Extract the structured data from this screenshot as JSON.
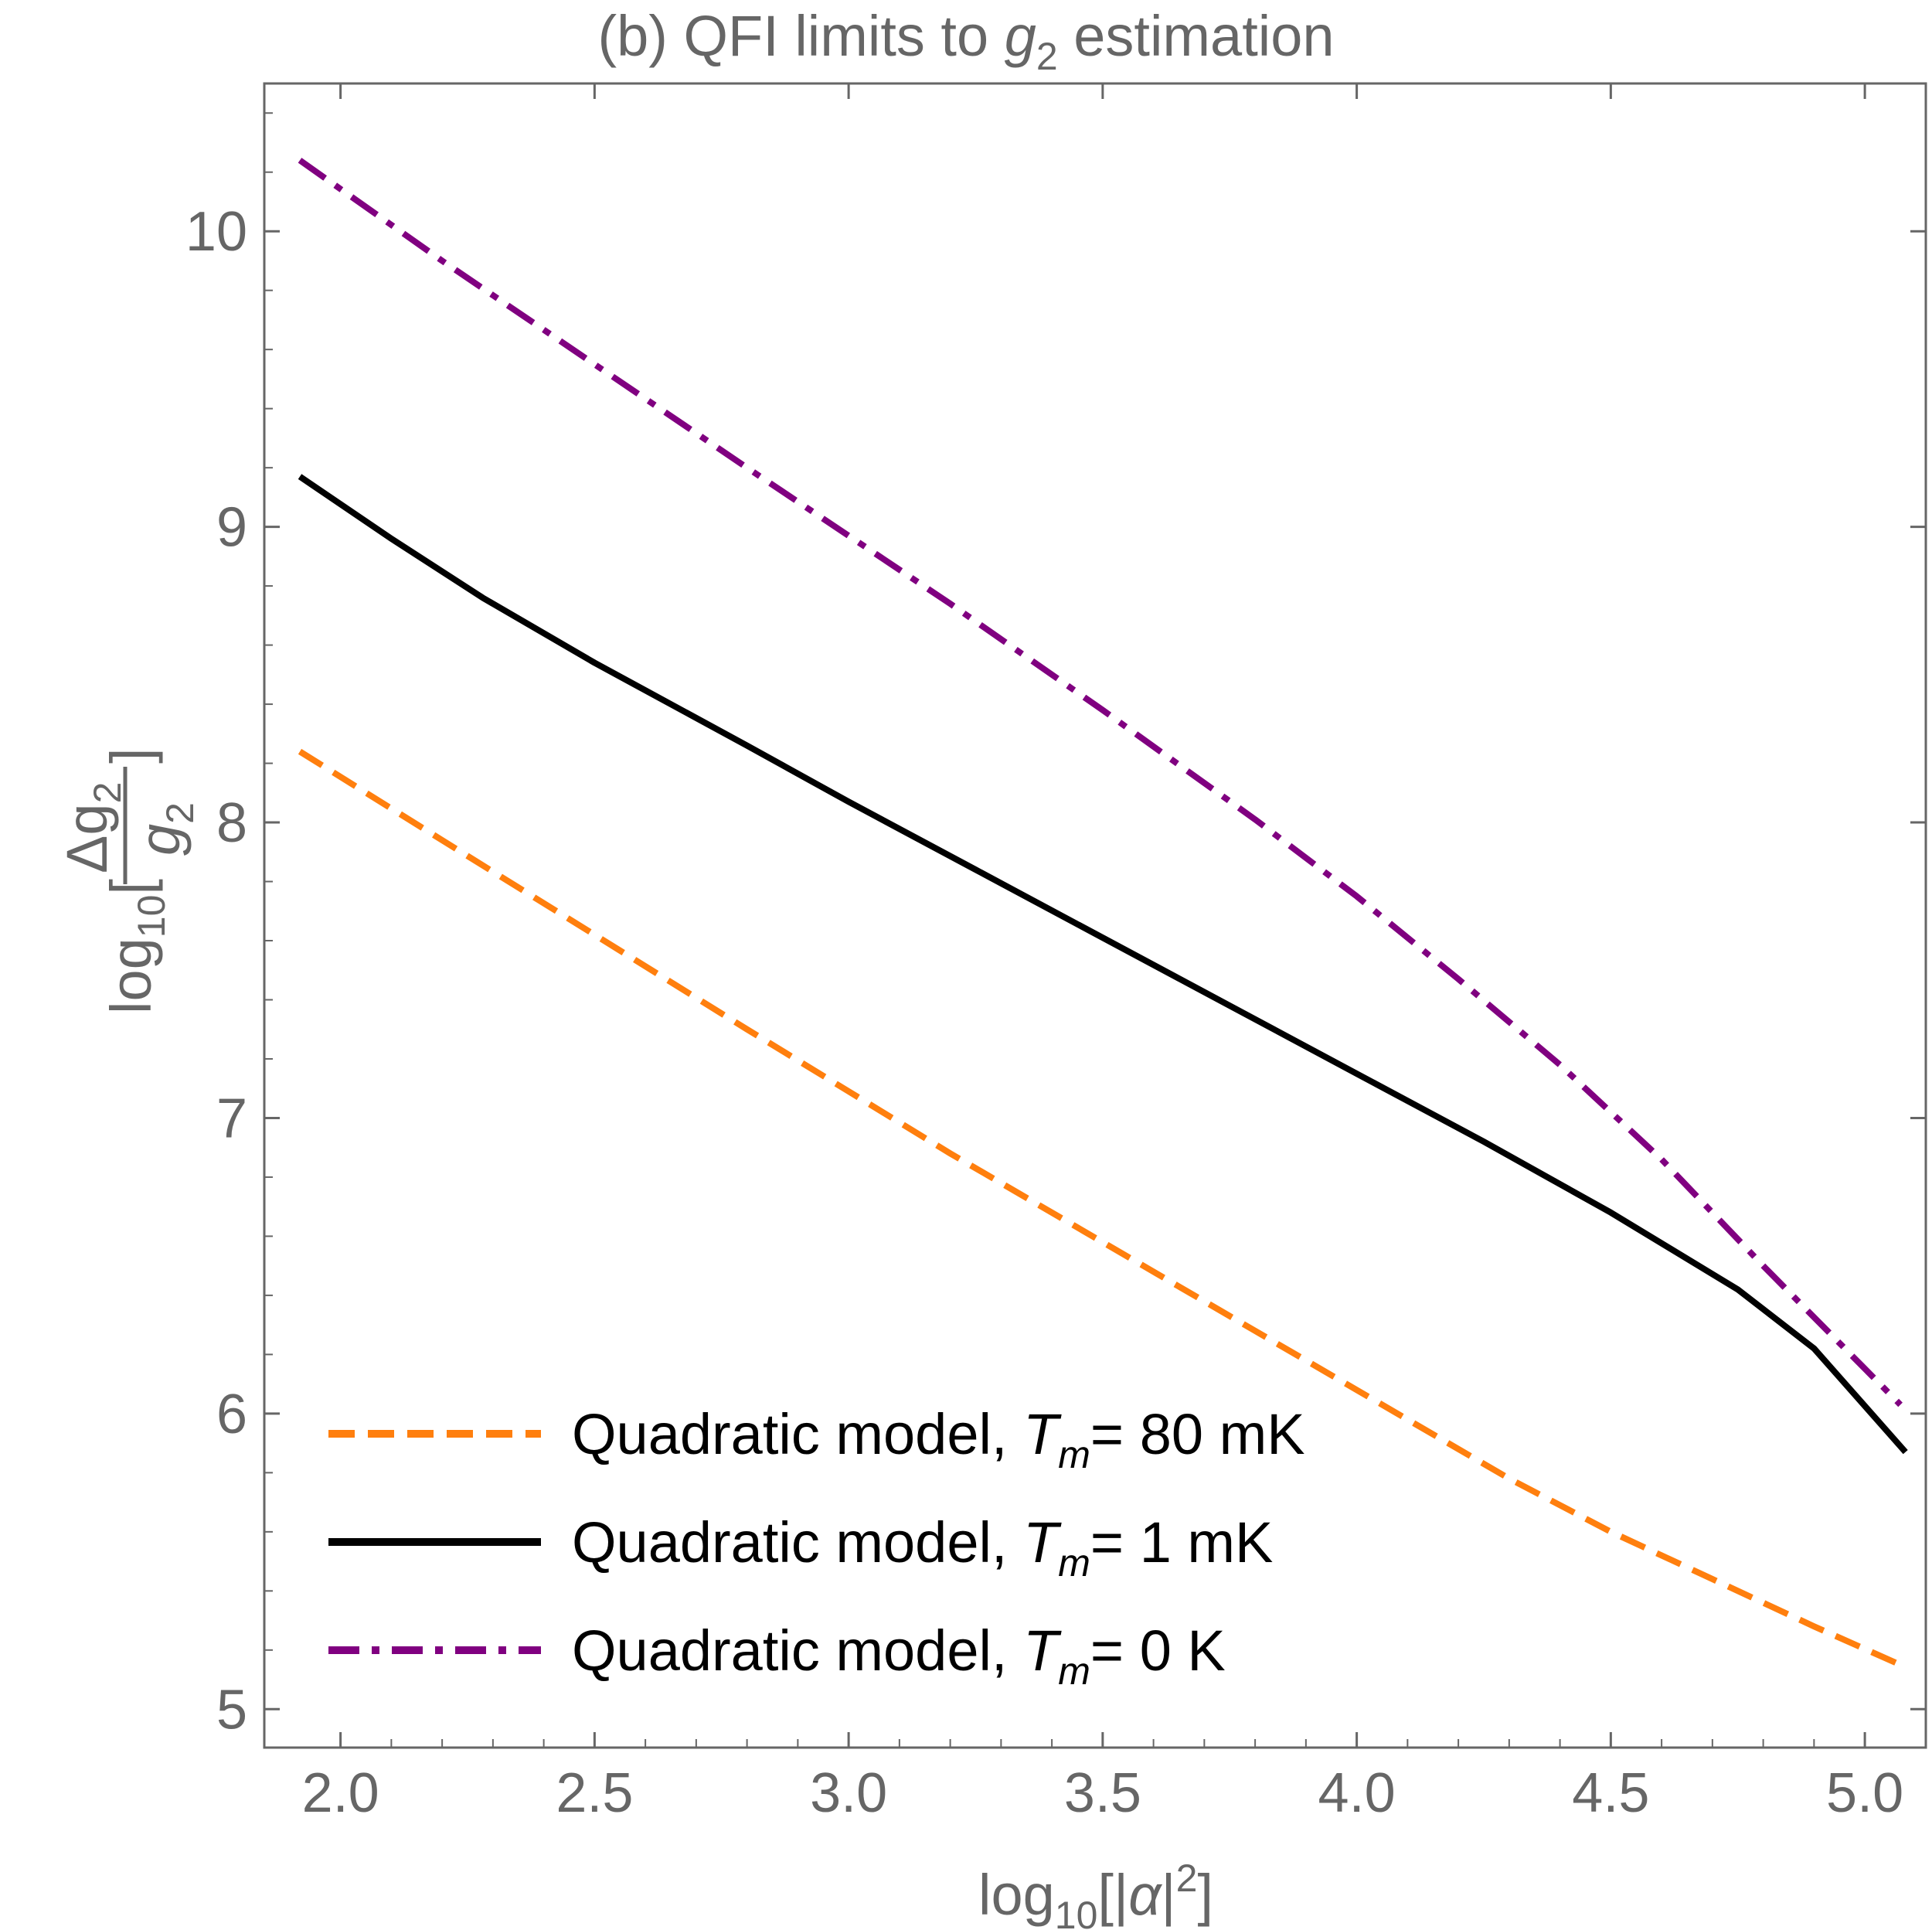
{
  "chart_data": {
    "type": "line",
    "title": {
      "prefix": "(b) QFI limits to ",
      "symbol": "g",
      "subscript": "2",
      "suffix": " estimation"
    },
    "xlabel": {
      "log": "log",
      "logsub": "10",
      "open": "[|",
      "symbol": "α",
      "close": "|",
      "power": "2",
      "end": "]"
    },
    "ylabel": {
      "log": "log",
      "logsub": "10",
      "open": "[",
      "num_delta": "Δg",
      "num_sub": "2",
      "den": "g",
      "den_sub": "2",
      "close": "]"
    },
    "xlim": [
      1.85,
      5.12
    ],
    "ylim": [
      4.87,
      10.5
    ],
    "xticks": [
      2.0,
      2.5,
      3.0,
      3.5,
      4.0,
      4.5,
      5.0
    ],
    "xtick_labels": [
      "2.0",
      "2.5",
      "3.0",
      "3.5",
      "4.0",
      "4.5",
      "5.0"
    ],
    "yticks": [
      5,
      6,
      7,
      8,
      9,
      10
    ],
    "ytick_labels": [
      "5",
      "6",
      "7",
      "8",
      "9",
      "10"
    ],
    "grid": false,
    "legend_position": "bottom-left",
    "series": [
      {
        "name": "Quadratic model, T_m= 80 mK",
        "label_main": "Quadratic model, ",
        "label_sym": "T",
        "label_sub": "m",
        "label_tail": "= 80 mK",
        "color": "#ff7f0e",
        "style": "dashed",
        "x": [
          1.92,
          2.2,
          2.5,
          2.8,
          3.0,
          3.2,
          3.5,
          3.8,
          4.0,
          4.3,
          4.5,
          4.7,
          4.9,
          5.07
        ],
        "y": [
          8.24,
          7.94,
          7.62,
          7.3,
          7.09,
          6.88,
          6.58,
          6.28,
          6.08,
          5.78,
          5.6,
          5.44,
          5.28,
          5.15
        ]
      },
      {
        "name": "Quadratic model, T_m= 1 mK",
        "label_main": "Quadratic model, ",
        "label_sym": "T",
        "label_sub": "m",
        "label_tail": "= 1 mK",
        "color": "#000000",
        "style": "solid",
        "x": [
          1.92,
          2.1,
          2.28,
          2.5,
          2.8,
          3.0,
          3.25,
          3.5,
          3.75,
          4.0,
          4.25,
          4.5,
          4.75,
          4.9,
          5.08
        ],
        "y": [
          9.17,
          8.96,
          8.76,
          8.54,
          8.26,
          8.07,
          7.84,
          7.61,
          7.38,
          7.15,
          6.92,
          6.68,
          6.42,
          6.22,
          5.87
        ]
      },
      {
        "name": "Quadratic model, T_m= 0 K",
        "label_main": "Quadratic model, ",
        "label_sym": "T",
        "label_sub": "m",
        "label_tail": "= 0 K",
        "color": "#800080",
        "style": "dashdot",
        "x": [
          1.92,
          2.2,
          2.5,
          2.8,
          3.0,
          3.2,
          3.5,
          3.8,
          4.0,
          4.2,
          4.4,
          4.6,
          4.8,
          5.07
        ],
        "y": [
          10.24,
          9.9,
          9.55,
          9.2,
          8.97,
          8.74,
          8.38,
          8.01,
          7.75,
          7.47,
          7.18,
          6.86,
          6.5,
          6.03
        ]
      }
    ]
  }
}
